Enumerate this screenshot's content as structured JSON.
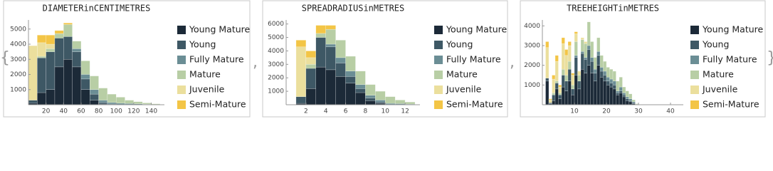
{
  "delimiters": {
    "open": "{",
    "separator": ",",
    "close": "}"
  },
  "chart_data": [
    {
      "type": "histogram",
      "title": "DIAMETERinCENTIMETRES",
      "bins": [
        0,
        10,
        20,
        30,
        40,
        50,
        60,
        70,
        80,
        90,
        100,
        110,
        120,
        130,
        140,
        150
      ],
      "xlim": [
        0,
        155
      ],
      "xticks": [
        20,
        40,
        60,
        80,
        100,
        120,
        140
      ],
      "ylim": [
        0,
        5600
      ],
      "yticks": [
        1000,
        2000,
        3000,
        4000,
        5000
      ],
      "stacked": true,
      "series": [
        {
          "name": "Young Mature",
          "color": "#1c2a38",
          "values": [
            100,
            800,
            1000,
            2500,
            3000,
            2500,
            1000,
            300,
            50,
            0,
            0,
            0,
            0,
            0,
            0
          ]
        },
        {
          "name": "Young",
          "color": "#3e5865",
          "values": [
            200,
            2300,
            2500,
            1900,
            1500,
            1000,
            700,
            400,
            100,
            50,
            0,
            0,
            0,
            0,
            0
          ]
        },
        {
          "name": "Fully Mature",
          "color": "#6b8e95",
          "values": [
            0,
            0,
            0,
            0,
            0,
            200,
            300,
            300,
            150,
            100,
            100,
            80,
            60,
            40,
            20
          ]
        },
        {
          "name": "Mature",
          "color": "#b8cea5",
          "values": [
            0,
            100,
            200,
            300,
            800,
            500,
            900,
            900,
            800,
            550,
            400,
            220,
            140,
            80,
            40
          ]
        },
        {
          "name": "Juvenile",
          "color": "#ebdf9d",
          "values": [
            3600,
            900,
            300,
            0,
            0,
            0,
            0,
            0,
            0,
            0,
            0,
            0,
            0,
            0,
            0
          ]
        },
        {
          "name": "Semi-Mature",
          "color": "#f3c546",
          "values": [
            0,
            500,
            600,
            200,
            100,
            0,
            0,
            0,
            0,
            0,
            0,
            0,
            0,
            0,
            0
          ]
        }
      ]
    },
    {
      "type": "histogram",
      "title": "SPREADRADIUSinMETRES",
      "bins": [
        1,
        2,
        3,
        4,
        5,
        6,
        7,
        8,
        9,
        10,
        11,
        12,
        13
      ],
      "xlim": [
        0,
        13.5
      ],
      "xticks": [
        2,
        4,
        6,
        8,
        10,
        12
      ],
      "ylim": [
        0,
        6300
      ],
      "yticks": [
        1000,
        2000,
        3000,
        4000,
        5000,
        6000
      ],
      "stacked": true,
      "series": [
        {
          "name": "Young Mature",
          "color": "#1c2a38",
          "values": [
            100,
            1200,
            2800,
            2600,
            2100,
            1600,
            900,
            300,
            100,
            0,
            0,
            0
          ]
        },
        {
          "name": "Young",
          "color": "#3e5865",
          "values": [
            500,
            1500,
            2200,
            1700,
            1000,
            500,
            300,
            200,
            100,
            0,
            0,
            0
          ]
        },
        {
          "name": "Fully Mature",
          "color": "#6b8e95",
          "values": [
            0,
            0,
            0,
            200,
            400,
            400,
            300,
            200,
            150,
            100,
            80,
            50
          ]
        },
        {
          "name": "Mature",
          "color": "#b8cea5",
          "values": [
            0,
            300,
            300,
            1100,
            1300,
            1100,
            1000,
            800,
            650,
            500,
            270,
            150
          ]
        },
        {
          "name": "Juvenile",
          "color": "#ebdf9d",
          "values": [
            3700,
            500,
            0,
            0,
            0,
            0,
            0,
            0,
            0,
            0,
            0,
            0
          ]
        },
        {
          "name": "Semi-Mature",
          "color": "#f3c546",
          "values": [
            500,
            500,
            600,
            300,
            0,
            0,
            0,
            0,
            0,
            0,
            0,
            0
          ]
        }
      ]
    },
    {
      "type": "histogram",
      "title": "TREEHEIGHTinMETRES",
      "bins": [
        1,
        2,
        3,
        4,
        5,
        6,
        7,
        8,
        9,
        10,
        11,
        12,
        13,
        14,
        15,
        16,
        17,
        18,
        19,
        20,
        21,
        22,
        23,
        24,
        25,
        26,
        27,
        28,
        29,
        30
      ],
      "xlim": [
        0,
        44
      ],
      "xticks": [
        10,
        20,
        30,
        40
      ],
      "ylim": [
        0,
        4300
      ],
      "yticks": [
        1000,
        2000,
        3000,
        4000
      ],
      "stacked": true,
      "series": [
        {
          "name": "Young Mature",
          "color": "#1c2a38",
          "values": [
            1200,
            50,
            200,
            800,
            300,
            900,
            700,
            1200,
            500,
            1500,
            800,
            1800,
            1600,
            2000,
            1600,
            1200,
            2000,
            1400,
            1200,
            1000,
            900,
            800,
            500,
            600,
            400,
            200,
            150,
            50,
            0
          ]
        },
        {
          "name": "Young",
          "color": "#3e5865",
          "values": [
            150,
            50,
            300,
            300,
            200,
            600,
            500,
            600,
            300,
            900,
            400,
            800,
            700,
            800,
            600,
            400,
            500,
            300,
            300,
            200,
            200,
            200,
            100,
            100,
            100,
            100,
            50,
            50,
            0
          ]
        },
        {
          "name": "Fully Mature",
          "color": "#6b8e95",
          "values": [
            0,
            0,
            0,
            0,
            0,
            0,
            0,
            0,
            0,
            100,
            0,
            100,
            100,
            200,
            200,
            200,
            200,
            200,
            200,
            200,
            200,
            200,
            100,
            200,
            100,
            100,
            100,
            50,
            20
          ]
        },
        {
          "name": "Mature",
          "color": "#b8cea5",
          "values": [
            0,
            0,
            100,
            100,
            100,
            300,
            300,
            400,
            200,
            700,
            300,
            600,
            700,
            1200,
            800,
            600,
            700,
            600,
            500,
            500,
            500,
            500,
            500,
            500,
            300,
            300,
            250,
            100,
            30
          ]
        },
        {
          "name": "Juvenile",
          "color": "#ebdf9d",
          "values": [
            1550,
            150,
            700,
            1000,
            300,
            1300,
            1000,
            800,
            500,
            400,
            200,
            100,
            100,
            0,
            0,
            0,
            0,
            0,
            0,
            0,
            0,
            0,
            0,
            0,
            0,
            0,
            0,
            0,
            0
          ]
        },
        {
          "name": "Semi-Mature",
          "color": "#f3c546",
          "values": [
            300,
            50,
            200,
            300,
            100,
            300,
            300,
            200,
            100,
            100,
            0,
            0,
            0,
            0,
            0,
            0,
            0,
            0,
            0,
            0,
            0,
            0,
            0,
            0,
            0,
            0,
            0,
            0,
            0
          ]
        }
      ]
    }
  ]
}
